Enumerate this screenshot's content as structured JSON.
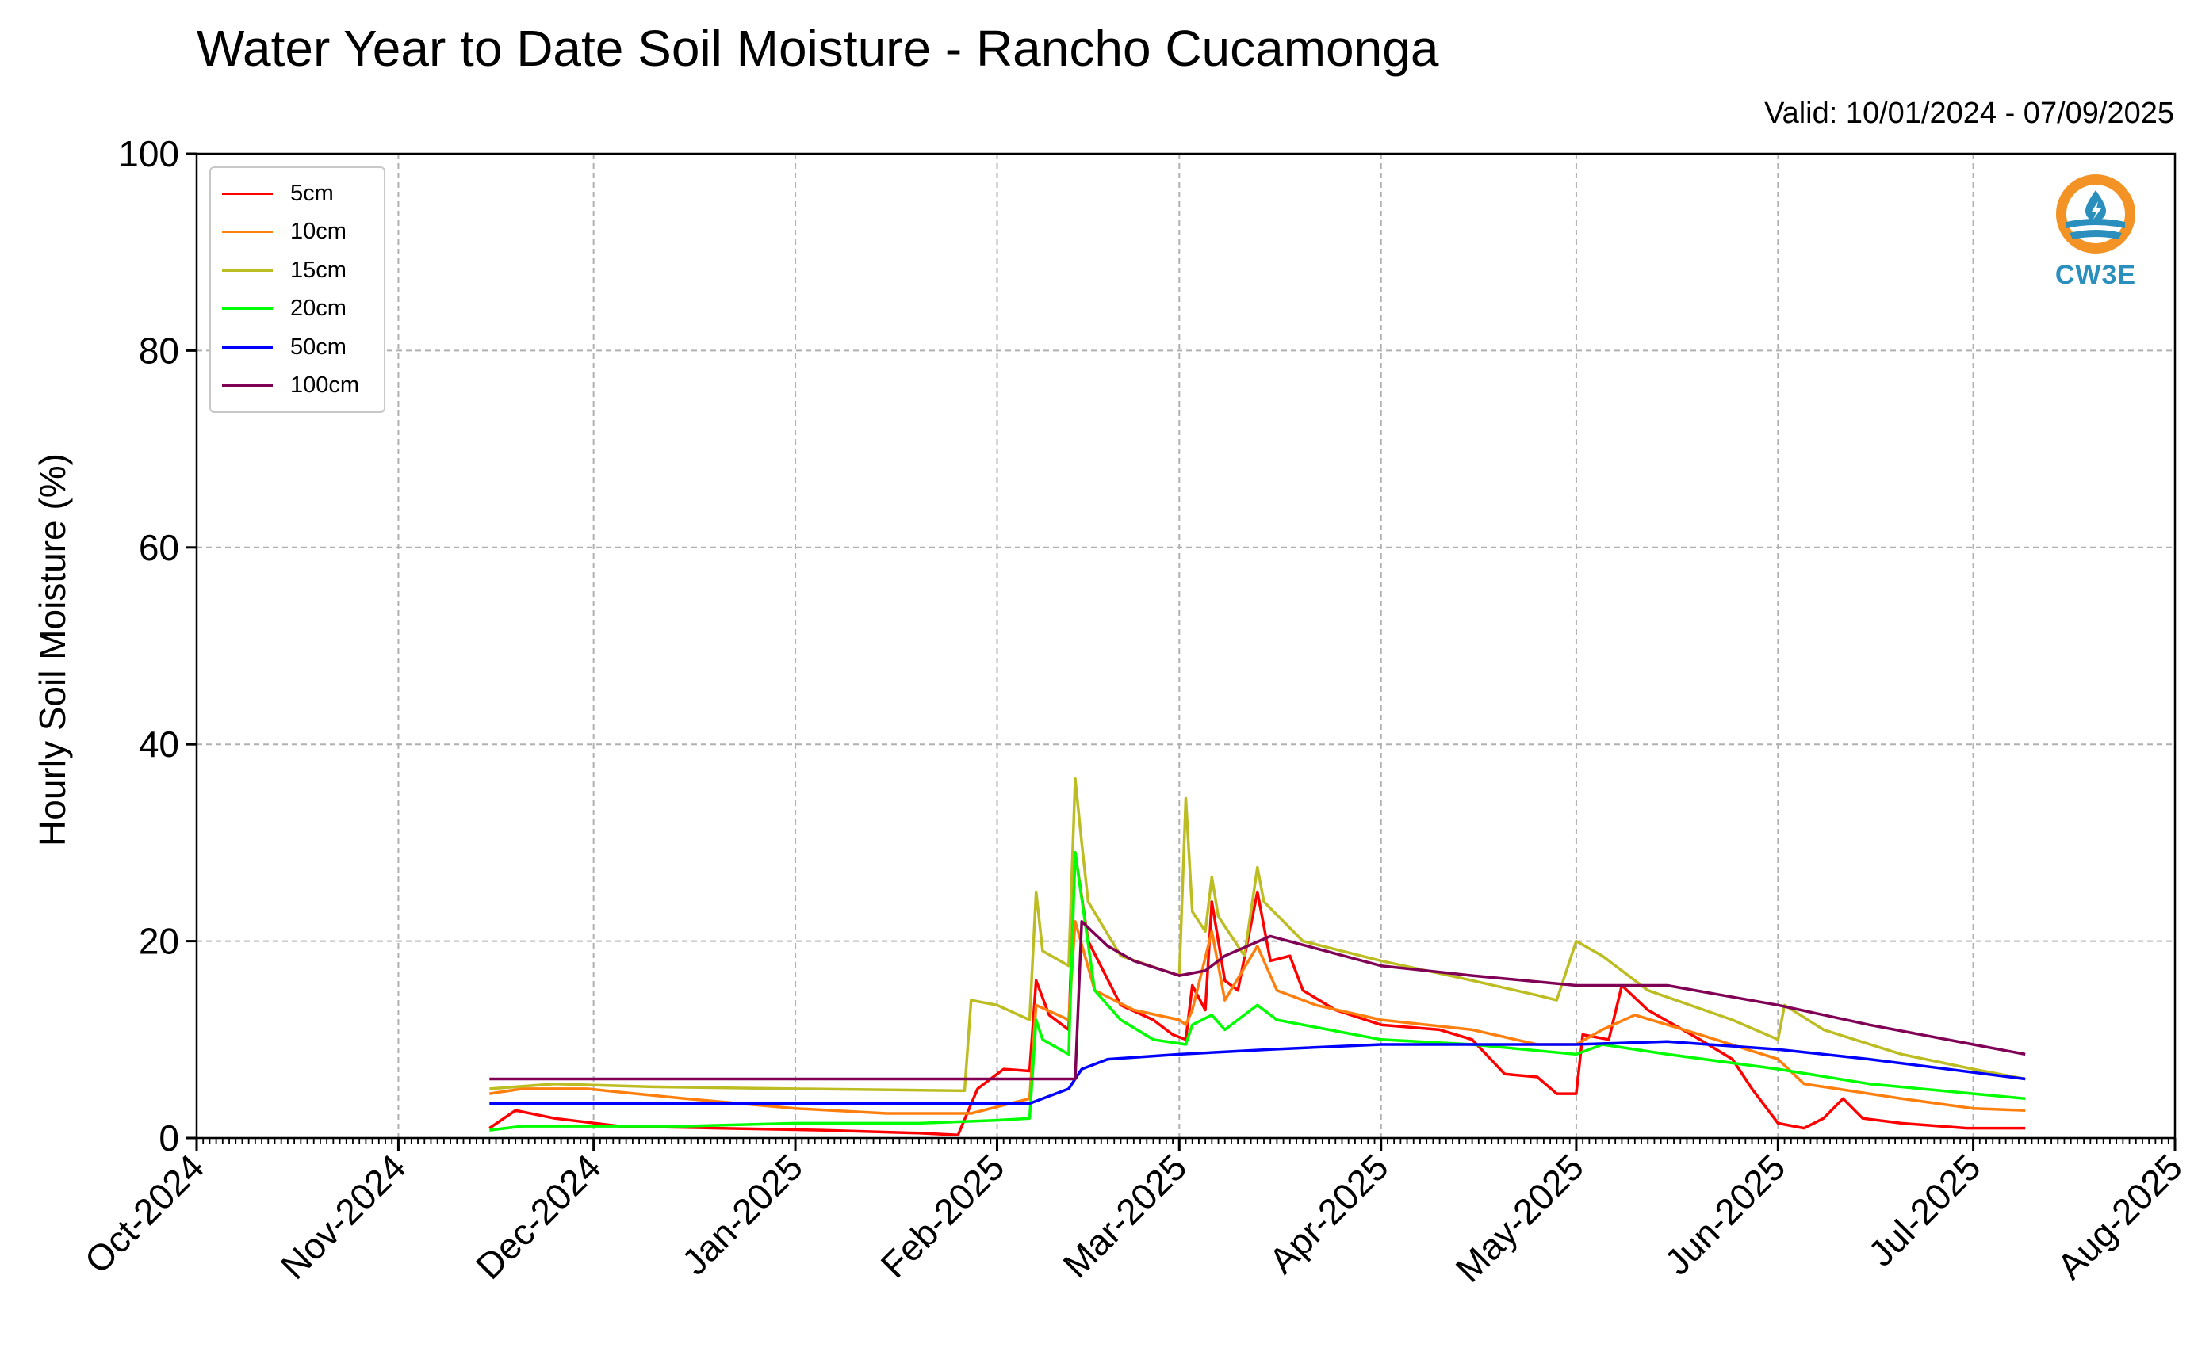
{
  "title": "Water Year to Date Soil Moisture - Rancho Cucamonga",
  "valid_text": "Valid: 10/01/2024 - 07/09/2025",
  "logo": {
    "text": "CW3E",
    "icon": "cw3e-drop-logo",
    "colors": {
      "orange": "#f39325",
      "blue": "#2a8fbd"
    }
  },
  "chart_data": {
    "type": "line",
    "ylabel": "Hourly Soil Moisture (%)",
    "xlabel": "",
    "ylim": [
      0,
      100
    ],
    "yticks": [
      0,
      20,
      40,
      60,
      80,
      100
    ],
    "xlim": [
      "2024-10-01",
      "2025-08-01"
    ],
    "xticks": [
      {
        "date": "2024-10-01",
        "label": "Oct-2024"
      },
      {
        "date": "2024-11-01",
        "label": "Nov-2024"
      },
      {
        "date": "2024-12-01",
        "label": "Dec-2024"
      },
      {
        "date": "2025-01-01",
        "label": "Jan-2025"
      },
      {
        "date": "2025-02-01",
        "label": "Feb-2025"
      },
      {
        "date": "2025-03-01",
        "label": "Mar-2025"
      },
      {
        "date": "2025-04-01",
        "label": "Apr-2025"
      },
      {
        "date": "2025-05-01",
        "label": "May-2025"
      },
      {
        "date": "2025-06-01",
        "label": "Jun-2025"
      },
      {
        "date": "2025-07-01",
        "label": "Jul-2025"
      },
      {
        "date": "2025-08-01",
        "label": "Aug-2025"
      }
    ],
    "grid": true,
    "legend_position": "top-left",
    "series": [
      {
        "name": "5cm",
        "color": "#ff0000",
        "points": [
          [
            "2024-11-15",
            1.0
          ],
          [
            "2024-11-19",
            2.8
          ],
          [
            "2024-11-25",
            2.0
          ],
          [
            "2024-12-05",
            1.2
          ],
          [
            "2024-12-20",
            1.0
          ],
          [
            "2025-01-05",
            0.8
          ],
          [
            "2025-01-20",
            0.5
          ],
          [
            "2025-01-26",
            0.3
          ],
          [
            "2025-01-29",
            5.0
          ],
          [
            "2025-02-02",
            7.0
          ],
          [
            "2025-02-06",
            6.8
          ],
          [
            "2025-02-07",
            16.0
          ],
          [
            "2025-02-09",
            12.5
          ],
          [
            "2025-02-12",
            11.0
          ],
          [
            "2025-02-13",
            29.0
          ],
          [
            "2025-02-15",
            20.0
          ],
          [
            "2025-02-20",
            13.5
          ],
          [
            "2025-02-25",
            12.0
          ],
          [
            "2025-02-28",
            10.5
          ],
          [
            "2025-03-02",
            10.0
          ],
          [
            "2025-03-03",
            15.5
          ],
          [
            "2025-03-05",
            13.0
          ],
          [
            "2025-03-06",
            24.0
          ],
          [
            "2025-03-08",
            16.0
          ],
          [
            "2025-03-10",
            15.0
          ],
          [
            "2025-03-13",
            25.0
          ],
          [
            "2025-03-15",
            18.0
          ],
          [
            "2025-03-18",
            18.5
          ],
          [
            "2025-03-20",
            15.0
          ],
          [
            "2025-03-25",
            13.0
          ],
          [
            "2025-04-01",
            11.5
          ],
          [
            "2025-04-10",
            11.0
          ],
          [
            "2025-04-15",
            10.0
          ],
          [
            "2025-04-20",
            6.5
          ],
          [
            "2025-04-25",
            6.2
          ],
          [
            "2025-04-28",
            4.5
          ],
          [
            "2025-05-01",
            4.5
          ],
          [
            "2025-05-02",
            10.5
          ],
          [
            "2025-05-06",
            10.0
          ],
          [
            "2025-05-08",
            15.5
          ],
          [
            "2025-05-12",
            13.0
          ],
          [
            "2025-05-20",
            10.0
          ],
          [
            "2025-05-25",
            8.0
          ],
          [
            "2025-05-28",
            5.0
          ],
          [
            "2025-06-01",
            1.5
          ],
          [
            "2025-06-05",
            1.0
          ],
          [
            "2025-06-08",
            2.0
          ],
          [
            "2025-06-11",
            4.0
          ],
          [
            "2025-06-14",
            2.0
          ],
          [
            "2025-06-20",
            1.5
          ],
          [
            "2025-06-30",
            1.0
          ],
          [
            "2025-07-09",
            1.0
          ]
        ]
      },
      {
        "name": "10cm",
        "color": "#ff7f0e",
        "points": [
          [
            "2024-11-15",
            4.5
          ],
          [
            "2024-11-20",
            5.0
          ],
          [
            "2024-11-30",
            5.0
          ],
          [
            "2024-12-15",
            4.0
          ],
          [
            "2025-01-01",
            3.0
          ],
          [
            "2025-01-15",
            2.5
          ],
          [
            "2025-01-28",
            2.5
          ],
          [
            "2025-02-03",
            3.5
          ],
          [
            "2025-02-06",
            4.0
          ],
          [
            "2025-02-07",
            13.5
          ],
          [
            "2025-02-12",
            12.0
          ],
          [
            "2025-02-13",
            22.0
          ],
          [
            "2025-02-16",
            15.0
          ],
          [
            "2025-02-22",
            13.0
          ],
          [
            "2025-03-01",
            12.0
          ],
          [
            "2025-03-02",
            11.5
          ],
          [
            "2025-03-03",
            13.0
          ],
          [
            "2025-03-06",
            21.0
          ],
          [
            "2025-03-08",
            14.0
          ],
          [
            "2025-03-13",
            19.5
          ],
          [
            "2025-03-16",
            15.0
          ],
          [
            "2025-03-22",
            13.5
          ],
          [
            "2025-04-01",
            12.0
          ],
          [
            "2025-04-15",
            11.0
          ],
          [
            "2025-04-25",
            9.5
          ],
          [
            "2025-05-01",
            9.5
          ],
          [
            "2025-05-05",
            11.0
          ],
          [
            "2025-05-10",
            12.5
          ],
          [
            "2025-05-20",
            10.5
          ],
          [
            "2025-06-01",
            8.0
          ],
          [
            "2025-06-05",
            5.5
          ],
          [
            "2025-06-10",
            5.0
          ],
          [
            "2025-06-20",
            4.0
          ],
          [
            "2025-07-01",
            3.0
          ],
          [
            "2025-07-09",
            2.8
          ]
        ]
      },
      {
        "name": "15cm",
        "color": "#bcbd22",
        "points": [
          [
            "2024-11-15",
            5.0
          ],
          [
            "2024-11-25",
            5.5
          ],
          [
            "2024-12-10",
            5.2
          ],
          [
            "2025-01-01",
            5.0
          ],
          [
            "2025-01-27",
            4.8
          ],
          [
            "2025-01-28",
            14.0
          ],
          [
            "2025-02-01",
            13.5
          ],
          [
            "2025-02-06",
            12.0
          ],
          [
            "2025-02-07",
            25.0
          ],
          [
            "2025-02-08",
            19.0
          ],
          [
            "2025-02-12",
            17.5
          ],
          [
            "2025-02-13",
            36.5
          ],
          [
            "2025-02-14",
            30.0
          ],
          [
            "2025-02-15",
            24.0
          ],
          [
            "2025-02-20",
            18.5
          ],
          [
            "2025-03-01",
            16.5
          ],
          [
            "2025-03-02",
            34.5
          ],
          [
            "2025-03-03",
            23.0
          ],
          [
            "2025-03-05",
            21.0
          ],
          [
            "2025-03-06",
            26.5
          ],
          [
            "2025-03-07",
            22.5
          ],
          [
            "2025-03-11",
            18.5
          ],
          [
            "2025-03-13",
            27.5
          ],
          [
            "2025-03-14",
            24.0
          ],
          [
            "2025-03-20",
            20.0
          ],
          [
            "2025-04-01",
            18.0
          ],
          [
            "2025-04-15",
            16.0
          ],
          [
            "2025-04-25",
            14.5
          ],
          [
            "2025-04-28",
            14.0
          ],
          [
            "2025-05-01",
            20.0
          ],
          [
            "2025-05-05",
            18.5
          ],
          [
            "2025-05-12",
            15.0
          ],
          [
            "2025-05-25",
            12.0
          ],
          [
            "2025-06-01",
            10.0
          ],
          [
            "2025-06-02",
            13.5
          ],
          [
            "2025-06-08",
            11.0
          ],
          [
            "2025-06-20",
            8.5
          ],
          [
            "2025-07-01",
            7.0
          ],
          [
            "2025-07-09",
            6.0
          ]
        ]
      },
      {
        "name": "20cm",
        "color": "#00ff00",
        "points": [
          [
            "2024-11-15",
            0.8
          ],
          [
            "2024-11-20",
            1.2
          ],
          [
            "2024-12-15",
            1.2
          ],
          [
            "2025-01-01",
            1.5
          ],
          [
            "2025-01-20",
            1.5
          ],
          [
            "2025-02-01",
            1.8
          ],
          [
            "2025-02-06",
            2.0
          ],
          [
            "2025-02-07",
            12.0
          ],
          [
            "2025-02-08",
            10.0
          ],
          [
            "2025-02-12",
            8.5
          ],
          [
            "2025-02-13",
            29.0
          ],
          [
            "2025-02-16",
            15.0
          ],
          [
            "2025-02-20",
            12.0
          ],
          [
            "2025-02-25",
            10.0
          ],
          [
            "2025-03-02",
            9.5
          ],
          [
            "2025-03-03",
            11.5
          ],
          [
            "2025-03-06",
            12.5
          ],
          [
            "2025-03-08",
            11.0
          ],
          [
            "2025-03-13",
            13.5
          ],
          [
            "2025-03-16",
            12.0
          ],
          [
            "2025-04-01",
            10.0
          ],
          [
            "2025-04-15",
            9.5
          ],
          [
            "2025-05-01",
            8.5
          ],
          [
            "2025-05-05",
            9.5
          ],
          [
            "2025-05-15",
            8.5
          ],
          [
            "2025-06-01",
            7.0
          ],
          [
            "2025-06-15",
            5.5
          ],
          [
            "2025-07-01",
            4.5
          ],
          [
            "2025-07-09",
            4.0
          ]
        ]
      },
      {
        "name": "50cm",
        "color": "#0000ff",
        "points": [
          [
            "2024-11-15",
            3.5
          ],
          [
            "2025-01-01",
            3.5
          ],
          [
            "2025-02-06",
            3.5
          ],
          [
            "2025-02-12",
            5.0
          ],
          [
            "2025-02-14",
            7.0
          ],
          [
            "2025-02-18",
            8.0
          ],
          [
            "2025-03-01",
            8.5
          ],
          [
            "2025-03-15",
            9.0
          ],
          [
            "2025-04-01",
            9.5
          ],
          [
            "2025-04-15",
            9.5
          ],
          [
            "2025-05-01",
            9.5
          ],
          [
            "2025-05-15",
            9.8
          ],
          [
            "2025-06-01",
            9.0
          ],
          [
            "2025-06-15",
            8.0
          ],
          [
            "2025-07-09",
            6.0
          ]
        ]
      },
      {
        "name": "100cm",
        "color": "#7f0055",
        "points": [
          [
            "2024-11-15",
            6.0
          ],
          [
            "2024-12-15",
            6.0
          ],
          [
            "2025-01-15",
            6.0
          ],
          [
            "2025-02-13",
            6.0
          ],
          [
            "2025-02-14",
            22.0
          ],
          [
            "2025-02-18",
            19.5
          ],
          [
            "2025-02-22",
            18.0
          ],
          [
            "2025-03-01",
            16.5
          ],
          [
            "2025-03-05",
            17.0
          ],
          [
            "2025-03-08",
            18.5
          ],
          [
            "2025-03-15",
            20.5
          ],
          [
            "2025-04-01",
            17.5
          ],
          [
            "2025-04-15",
            16.5
          ],
          [
            "2025-05-01",
            15.5
          ],
          [
            "2025-05-15",
            15.5
          ],
          [
            "2025-06-01",
            13.5
          ],
          [
            "2025-06-15",
            11.5
          ],
          [
            "2025-07-01",
            9.5
          ],
          [
            "2025-07-09",
            8.5
          ]
        ]
      }
    ]
  }
}
